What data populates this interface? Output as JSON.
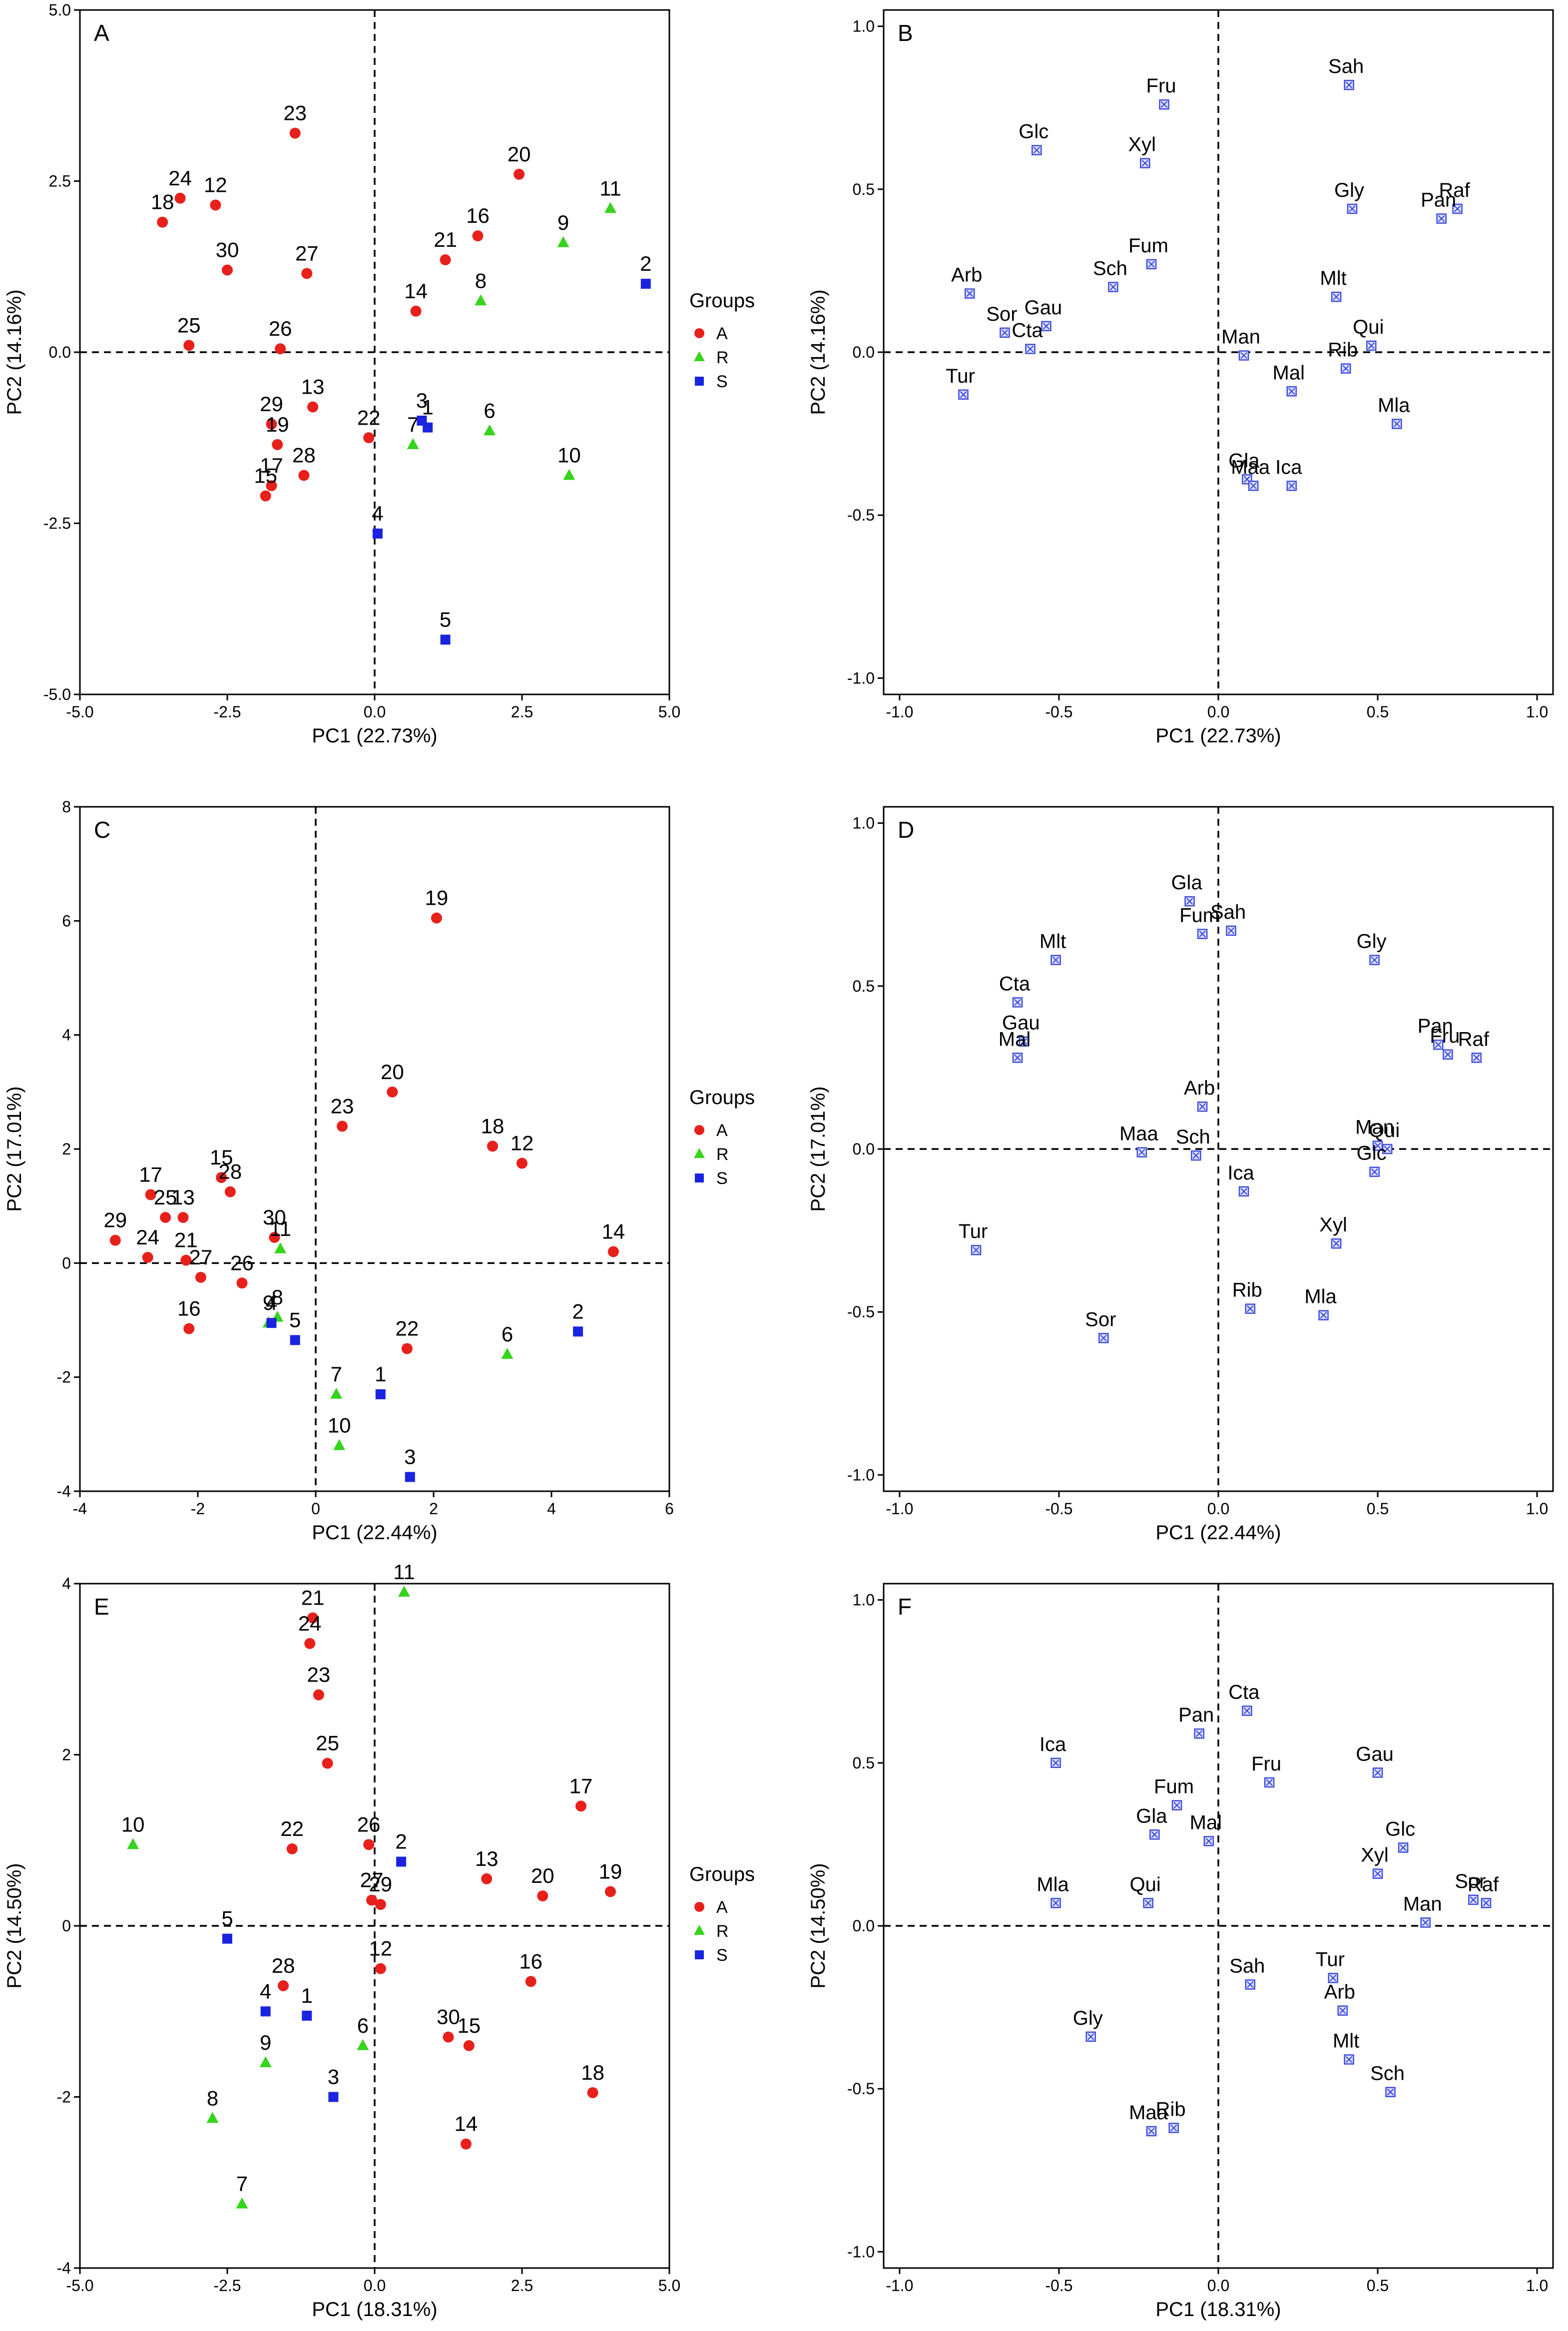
{
  "groups": [
    {
      "code": "A",
      "color": "#e8201b",
      "shape": "circle"
    },
    {
      "code": "R",
      "color": "#35d41c",
      "shape": "triangle"
    },
    {
      "code": "S",
      "color": "#1a24e0",
      "shape": "square"
    }
  ],
  "legend_title": "Groups",
  "chart_data": [
    {
      "panel": "A",
      "type": "scatter",
      "title": "",
      "xlabel": "PC1 (22.73%)",
      "ylabel": "PC2 (14.16%)",
      "xlim": [
        -5,
        5
      ],
      "ylim": [
        -5,
        5
      ],
      "xticks": [
        "-5.0",
        "-2.5",
        "0.0",
        "2.5",
        "5.0"
      ],
      "yticks": [
        "-5.0",
        "-2.5",
        "0.0",
        "2.5",
        "5.0"
      ],
      "legend": true,
      "points": [
        {
          "label": "23",
          "x": -1.35,
          "y": 3.2,
          "group": "A"
        },
        {
          "label": "24",
          "x": -3.3,
          "y": 2.25,
          "group": "A"
        },
        {
          "label": "12",
          "x": -2.7,
          "y": 2.15,
          "group": "A"
        },
        {
          "label": "18",
          "x": -3.6,
          "y": 1.9,
          "group": "A"
        },
        {
          "label": "30",
          "x": -2.5,
          "y": 1.2,
          "group": "A"
        },
        {
          "label": "27",
          "x": -1.15,
          "y": 1.15,
          "group": "A"
        },
        {
          "label": "25",
          "x": -3.15,
          "y": 0.1,
          "group": "A"
        },
        {
          "label": "26",
          "x": -1.6,
          "y": 0.05,
          "group": "A"
        },
        {
          "label": "20",
          "x": 2.45,
          "y": 2.6,
          "group": "A"
        },
        {
          "label": "16",
          "x": 1.75,
          "y": 1.7,
          "group": "A"
        },
        {
          "label": "21",
          "x": 1.2,
          "y": 1.35,
          "group": "A"
        },
        {
          "label": "14",
          "x": 0.7,
          "y": 0.6,
          "group": "A"
        },
        {
          "label": "13",
          "x": -1.05,
          "y": -0.8,
          "group": "A"
        },
        {
          "label": "29",
          "x": -1.75,
          "y": -1.05,
          "group": "A"
        },
        {
          "label": "19",
          "x": -1.65,
          "y": -1.35,
          "group": "A"
        },
        {
          "label": "22",
          "x": -0.1,
          "y": -1.25,
          "group": "A"
        },
        {
          "label": "28",
          "x": -1.2,
          "y": -1.8,
          "group": "A"
        },
        {
          "label": "17",
          "x": -1.75,
          "y": -1.95,
          "group": "A"
        },
        {
          "label": "15",
          "x": -1.85,
          "y": -2.1,
          "group": "A"
        },
        {
          "label": "11",
          "x": 4.0,
          "y": 2.1,
          "group": "R"
        },
        {
          "label": "9",
          "x": 3.2,
          "y": 1.6,
          "group": "R"
        },
        {
          "label": "8",
          "x": 1.8,
          "y": 0.75,
          "group": "R"
        },
        {
          "label": "6",
          "x": 1.95,
          "y": -1.15,
          "group": "R"
        },
        {
          "label": "7",
          "x": 0.65,
          "y": -1.35,
          "group": "R"
        },
        {
          "label": "10",
          "x": 3.3,
          "y": -1.8,
          "group": "R"
        },
        {
          "label": "2",
          "x": 4.6,
          "y": 1.0,
          "group": "S"
        },
        {
          "label": "3",
          "x": 0.8,
          "y": -1.0,
          "group": "S"
        },
        {
          "label": "1",
          "x": 0.9,
          "y": -1.1,
          "group": "S"
        },
        {
          "label": "4",
          "x": 0.05,
          "y": -2.65,
          "group": "S"
        },
        {
          "label": "5",
          "x": 1.2,
          "y": -4.2,
          "group": "S"
        }
      ]
    },
    {
      "panel": "B",
      "type": "scatter",
      "title": "",
      "xlabel": "PC1 (22.73%)",
      "ylabel": "PC2 (14.16%)",
      "xlim": [
        -1.05,
        1.05
      ],
      "ylim": [
        -1.05,
        1.05
      ],
      "xticks": [
        "-1.0",
        "-0.5",
        "0.0",
        "0.5",
        "1.0"
      ],
      "yticks": [
        "-1.0",
        "-0.5",
        "0.0",
        "0.5",
        "1.0"
      ],
      "legend": false,
      "points": [
        {
          "label": "Sah",
          "x": 0.41,
          "y": 0.82
        },
        {
          "label": "Fru",
          "x": -0.17,
          "y": 0.76
        },
        {
          "label": "Glc",
          "x": -0.57,
          "y": 0.62
        },
        {
          "label": "Xyl",
          "x": -0.23,
          "y": 0.58
        },
        {
          "label": "Raf",
          "x": 0.75,
          "y": 0.44
        },
        {
          "label": "Gly",
          "x": 0.42,
          "y": 0.44
        },
        {
          "label": "Pan",
          "x": 0.7,
          "y": 0.41
        },
        {
          "label": "Fum",
          "x": -0.21,
          "y": 0.27
        },
        {
          "label": "Sch",
          "x": -0.33,
          "y": 0.2
        },
        {
          "label": "Arb",
          "x": -0.78,
          "y": 0.18
        },
        {
          "label": "Mlt",
          "x": 0.37,
          "y": 0.17
        },
        {
          "label": "Gau",
          "x": -0.54,
          "y": 0.08
        },
        {
          "label": "Sor",
          "x": -0.67,
          "y": 0.06
        },
        {
          "label": "Qui",
          "x": 0.48,
          "y": 0.02
        },
        {
          "label": "Cta",
          "x": -0.59,
          "y": 0.01
        },
        {
          "label": "Man",
          "x": 0.08,
          "y": -0.01
        },
        {
          "label": "Rib",
          "x": 0.4,
          "y": -0.05
        },
        {
          "label": "Tur",
          "x": -0.8,
          "y": -0.13
        },
        {
          "label": "Mal",
          "x": 0.23,
          "y": -0.12
        },
        {
          "label": "Mla",
          "x": 0.56,
          "y": -0.22
        },
        {
          "label": "Gla",
          "x": 0.09,
          "y": -0.39
        },
        {
          "label": "Maa",
          "x": 0.11,
          "y": -0.41
        },
        {
          "label": "Ica",
          "x": 0.23,
          "y": -0.41
        }
      ]
    },
    {
      "panel": "C",
      "type": "scatter",
      "title": "",
      "xlabel": "PC1 (22.44%)",
      "ylabel": "PC2 (17.01%)",
      "xlim": [
        -4,
        6
      ],
      "ylim": [
        -4,
        8
      ],
      "xticks": [
        "-4",
        "-2",
        "0",
        "2",
        "4",
        "6"
      ],
      "yticks": [
        "-4",
        "-2",
        "0",
        "2",
        "4",
        "6",
        "8"
      ],
      "legend": true,
      "points": [
        {
          "label": "19",
          "x": 2.05,
          "y": 6.05,
          "group": "A"
        },
        {
          "label": "20",
          "x": 1.3,
          "y": 3.0,
          "group": "A"
        },
        {
          "label": "23",
          "x": 0.45,
          "y": 2.4,
          "group": "A"
        },
        {
          "label": "18",
          "x": 3.0,
          "y": 2.05,
          "group": "A"
        },
        {
          "label": "12",
          "x": 3.5,
          "y": 1.75,
          "group": "A"
        },
        {
          "label": "14",
          "x": 5.05,
          "y": 0.2,
          "group": "A"
        },
        {
          "label": "17",
          "x": -2.8,
          "y": 1.2,
          "group": "A"
        },
        {
          "label": "15",
          "x": -1.6,
          "y": 1.5,
          "group": "A"
        },
        {
          "label": "28",
          "x": -1.45,
          "y": 1.25,
          "group": "A"
        },
        {
          "label": "13",
          "x": -2.25,
          "y": 0.8,
          "group": "A"
        },
        {
          "label": "25",
          "x": -2.55,
          "y": 0.8,
          "group": "A"
        },
        {
          "label": "29",
          "x": -3.4,
          "y": 0.4,
          "group": "A"
        },
        {
          "label": "30",
          "x": -0.7,
          "y": 0.45,
          "group": "A"
        },
        {
          "label": "24",
          "x": -2.85,
          "y": 0.1,
          "group": "A"
        },
        {
          "label": "21",
          "x": -2.2,
          "y": 0.05,
          "group": "A"
        },
        {
          "label": "26",
          "x": -1.25,
          "y": -0.35,
          "group": "A"
        },
        {
          "label": "27",
          "x": -1.95,
          "y": -0.25,
          "group": "A"
        },
        {
          "label": "16",
          "x": -2.15,
          "y": -1.15,
          "group": "A"
        },
        {
          "label": "22",
          "x": 1.55,
          "y": -1.5,
          "group": "A"
        },
        {
          "label": "11",
          "x": -0.6,
          "y": 0.25,
          "group": "R"
        },
        {
          "label": "8",
          "x": -0.65,
          "y": -0.95,
          "group": "R"
        },
        {
          "label": "9",
          "x": -0.8,
          "y": -1.05,
          "group": "R"
        },
        {
          "label": "6",
          "x": 3.25,
          "y": -1.6,
          "group": "R"
        },
        {
          "label": "7",
          "x": 0.35,
          "y": -2.3,
          "group": "R"
        },
        {
          "label": "10",
          "x": 0.4,
          "y": -3.2,
          "group": "R"
        },
        {
          "label": "4",
          "x": -0.75,
          "y": -1.05,
          "group": "S"
        },
        {
          "label": "5",
          "x": -0.35,
          "y": -1.35,
          "group": "S"
        },
        {
          "label": "1",
          "x": 1.1,
          "y": -2.3,
          "group": "S"
        },
        {
          "label": "2",
          "x": 4.45,
          "y": -1.2,
          "group": "S"
        },
        {
          "label": "3",
          "x": 1.6,
          "y": -3.75,
          "group": "S"
        }
      ]
    },
    {
      "panel": "D",
      "type": "scatter",
      "title": "",
      "xlabel": "PC1 (22.44%)",
      "ylabel": "PC2 (17.01%)",
      "xlim": [
        -1.05,
        1.05
      ],
      "ylim": [
        -1.05,
        1.05
      ],
      "xticks": [
        "-1.0",
        "-0.5",
        "0.0",
        "0.5",
        "1.0"
      ],
      "yticks": [
        "-1.0",
        "-0.5",
        "0.0",
        "0.5",
        "1.0"
      ],
      "legend": false,
      "points": [
        {
          "label": "Gla",
          "x": -0.09,
          "y": 0.76
        },
        {
          "label": "Fum",
          "x": -0.05,
          "y": 0.66
        },
        {
          "label": "Sah",
          "x": 0.04,
          "y": 0.67
        },
        {
          "label": "Gly",
          "x": 0.49,
          "y": 0.58
        },
        {
          "label": "Mlt",
          "x": -0.51,
          "y": 0.58
        },
        {
          "label": "Cta",
          "x": -0.63,
          "y": 0.45
        },
        {
          "label": "Gau",
          "x": -0.61,
          "y": 0.33
        },
        {
          "label": "Pan",
          "x": 0.69,
          "y": 0.32
        },
        {
          "label": "Fru",
          "x": 0.72,
          "y": 0.29
        },
        {
          "label": "Raf",
          "x": 0.81,
          "y": 0.28
        },
        {
          "label": "Mal",
          "x": -0.63,
          "y": 0.28
        },
        {
          "label": "Arb",
          "x": -0.05,
          "y": 0.13
        },
        {
          "label": "Man",
          "x": 0.5,
          "y": 0.01
        },
        {
          "label": "Qui",
          "x": 0.53,
          "y": 0.0
        },
        {
          "label": "Maa",
          "x": -0.24,
          "y": -0.01
        },
        {
          "label": "Sch",
          "x": -0.07,
          "y": -0.02
        },
        {
          "label": "Glc",
          "x": 0.49,
          "y": -0.07
        },
        {
          "label": "Ica",
          "x": 0.08,
          "y": -0.13
        },
        {
          "label": "Tur",
          "x": -0.76,
          "y": -0.31
        },
        {
          "label": "Xyl",
          "x": 0.37,
          "y": -0.29
        },
        {
          "label": "Rib",
          "x": 0.1,
          "y": -0.49
        },
        {
          "label": "Mla",
          "x": 0.33,
          "y": -0.51
        },
        {
          "label": "Sor",
          "x": -0.36,
          "y": -0.58
        }
      ]
    },
    {
      "panel": "E",
      "type": "scatter",
      "title": "",
      "xlabel": "PC1 (18.31%)",
      "ylabel": "PC2 (14.50%)",
      "xlim": [
        -5,
        5
      ],
      "ylim": [
        -4,
        4
      ],
      "xticks": [
        "-5.0",
        "-2.5",
        "0.0",
        "2.5",
        "5.0"
      ],
      "yticks": [
        "-4",
        "-2",
        "0",
        "2",
        "4"
      ],
      "legend": true,
      "points": [
        {
          "label": "21",
          "x": -1.05,
          "y": 3.6,
          "group": "A"
        },
        {
          "label": "24",
          "x": -1.1,
          "y": 3.3,
          "group": "A"
        },
        {
          "label": "23",
          "x": -0.95,
          "y": 2.7,
          "group": "A"
        },
        {
          "label": "25",
          "x": -0.8,
          "y": 1.9,
          "group": "A"
        },
        {
          "label": "22",
          "x": -1.4,
          "y": 0.9,
          "group": "A"
        },
        {
          "label": "26",
          "x": -0.1,
          "y": 0.95,
          "group": "A"
        },
        {
          "label": "27",
          "x": -0.05,
          "y": 0.3,
          "group": "A"
        },
        {
          "label": "29",
          "x": 0.1,
          "y": 0.25,
          "group": "A"
        },
        {
          "label": "12",
          "x": 0.1,
          "y": -0.5,
          "group": "A"
        },
        {
          "label": "13",
          "x": 1.9,
          "y": 0.55,
          "group": "A"
        },
        {
          "label": "17",
          "x": 3.5,
          "y": 1.4,
          "group": "A"
        },
        {
          "label": "20",
          "x": 2.85,
          "y": 0.35,
          "group": "A"
        },
        {
          "label": "19",
          "x": 4.0,
          "y": 0.4,
          "group": "A"
        },
        {
          "label": "16",
          "x": 2.65,
          "y": -0.65,
          "group": "A"
        },
        {
          "label": "28",
          "x": -1.55,
          "y": -0.7,
          "group": "A"
        },
        {
          "label": "30",
          "x": 1.25,
          "y": -1.3,
          "group": "A"
        },
        {
          "label": "15",
          "x": 1.6,
          "y": -1.4,
          "group": "A"
        },
        {
          "label": "18",
          "x": 3.7,
          "y": -1.95,
          "group": "A"
        },
        {
          "label": "14",
          "x": 1.55,
          "y": -2.55,
          "group": "A"
        },
        {
          "label": "11",
          "x": 0.5,
          "y": 3.9,
          "group": "R"
        },
        {
          "label": "10",
          "x": -4.1,
          "y": 0.95,
          "group": "R"
        },
        {
          "label": "9",
          "x": -1.85,
          "y": -1.6,
          "group": "R"
        },
        {
          "label": "6",
          "x": -0.2,
          "y": -1.4,
          "group": "R"
        },
        {
          "label": "8",
          "x": -2.75,
          "y": -2.25,
          "group": "R"
        },
        {
          "label": "7",
          "x": -2.25,
          "y": -3.25,
          "group": "R"
        },
        {
          "label": "2",
          "x": 0.45,
          "y": 0.75,
          "group": "S"
        },
        {
          "label": "5",
          "x": -2.5,
          "y": -0.15,
          "group": "S"
        },
        {
          "label": "4",
          "x": -1.85,
          "y": -1.0,
          "group": "S"
        },
        {
          "label": "1",
          "x": -1.15,
          "y": -1.05,
          "group": "S"
        },
        {
          "label": "3",
          "x": -0.7,
          "y": -2.0,
          "group": "S"
        }
      ]
    },
    {
      "panel": "F",
      "type": "scatter",
      "title": "",
      "xlabel": "PC1 (18.31%)",
      "ylabel": "PC2 (14.50%)",
      "xlim": [
        -1.05,
        1.05
      ],
      "ylim": [
        -1.05,
        1.05
      ],
      "xticks": [
        "-1.0",
        "-0.5",
        "0.0",
        "0.5",
        "1.0"
      ],
      "yticks": [
        "-1.0",
        "-0.5",
        "0.0",
        "0.5",
        "1.0"
      ],
      "legend": false,
      "points": [
        {
          "label": "Cta",
          "x": 0.09,
          "y": 0.66
        },
        {
          "label": "Pan",
          "x": -0.06,
          "y": 0.59
        },
        {
          "label": "Ica",
          "x": -0.51,
          "y": 0.5
        },
        {
          "label": "Gau",
          "x": 0.5,
          "y": 0.47
        },
        {
          "label": "Fru",
          "x": 0.16,
          "y": 0.44
        },
        {
          "label": "Fum",
          "x": -0.13,
          "y": 0.37
        },
        {
          "label": "Mal",
          "x": -0.03,
          "y": 0.26
        },
        {
          "label": "Gla",
          "x": -0.2,
          "y": 0.28
        },
        {
          "label": "Glc",
          "x": 0.58,
          "y": 0.24
        },
        {
          "label": "Xyl",
          "x": 0.5,
          "y": 0.16
        },
        {
          "label": "Sor",
          "x": 0.8,
          "y": 0.08
        },
        {
          "label": "Raf",
          "x": 0.84,
          "y": 0.07
        },
        {
          "label": "Mla",
          "x": -0.51,
          "y": 0.07
        },
        {
          "label": "Qui",
          "x": -0.22,
          "y": 0.07
        },
        {
          "label": "Man",
          "x": 0.65,
          "y": 0.01
        },
        {
          "label": "Sah",
          "x": 0.1,
          "y": -0.18
        },
        {
          "label": "Tur",
          "x": 0.36,
          "y": -0.16
        },
        {
          "label": "Arb",
          "x": 0.39,
          "y": -0.26
        },
        {
          "label": "Gly",
          "x": -0.4,
          "y": -0.34
        },
        {
          "label": "Mlt",
          "x": 0.41,
          "y": -0.41
        },
        {
          "label": "Sch",
          "x": 0.54,
          "y": -0.51
        },
        {
          "label": "Rib",
          "x": -0.14,
          "y": -0.62
        },
        {
          "label": "Maa",
          "x": -0.21,
          "y": -0.63
        }
      ]
    }
  ]
}
